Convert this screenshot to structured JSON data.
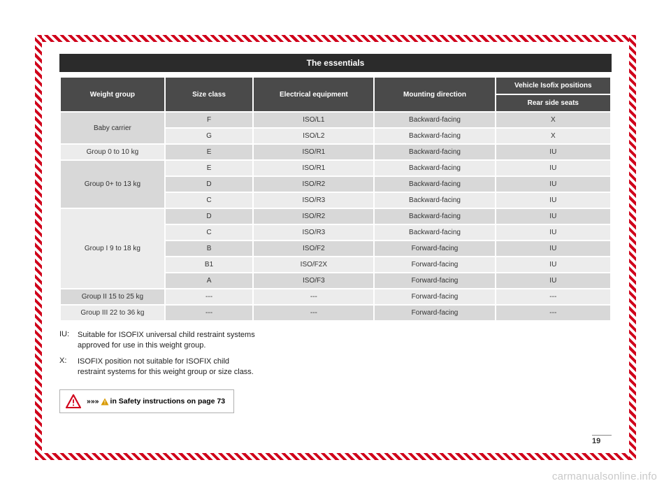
{
  "title": "The essentials",
  "columns": {
    "c1": "Weight group",
    "c2": "Size class",
    "c3": "Electrical equipment",
    "c4": "Mounting direction",
    "c5_top": "Vehicle Isofix positions",
    "c5_sub": "Rear side seats"
  },
  "rows": [
    {
      "group": "Baby carrier",
      "groupspan": 2,
      "shadeGroup": "a",
      "shade": "a",
      "size": "F",
      "equip": "ISO/L1",
      "dir": "Backward-facing",
      "pos": "X"
    },
    {
      "group": "",
      "groupspan": 0,
      "shadeGroup": "",
      "shade": "b",
      "size": "G",
      "equip": "ISO/L2",
      "dir": "Backward-facing",
      "pos": "X"
    },
    {
      "group": "Group 0 to 10 kg",
      "groupspan": 1,
      "shadeGroup": "b",
      "shade": "a",
      "size": "E",
      "equip": "ISO/R1",
      "dir": "Backward-facing",
      "pos": "IU"
    },
    {
      "group": "Group 0+ to 13 kg",
      "groupspan": 3,
      "shadeGroup": "a",
      "shade": "b",
      "size": "E",
      "equip": "ISO/R1",
      "dir": "Backward-facing",
      "pos": "IU"
    },
    {
      "group": "",
      "groupspan": 0,
      "shadeGroup": "",
      "shade": "a",
      "size": "D",
      "equip": "ISO/R2",
      "dir": "Backward-facing",
      "pos": "IU"
    },
    {
      "group": "",
      "groupspan": 0,
      "shadeGroup": "",
      "shade": "b",
      "size": "C",
      "equip": "ISO/R3",
      "dir": "Backward-facing",
      "pos": "IU"
    },
    {
      "group": "Group I 9 to 18 kg",
      "groupspan": 5,
      "shadeGroup": "b",
      "shade": "a",
      "size": "D",
      "equip": "ISO/R2",
      "dir": "Backward-facing",
      "pos": "IU"
    },
    {
      "group": "",
      "groupspan": 0,
      "shadeGroup": "",
      "shade": "b",
      "size": "C",
      "equip": "ISO/R3",
      "dir": "Backward-facing",
      "pos": "IU"
    },
    {
      "group": "",
      "groupspan": 0,
      "shadeGroup": "",
      "shade": "a",
      "size": "B",
      "equip": "ISO/F2",
      "dir": "Forward-facing",
      "pos": "IU"
    },
    {
      "group": "",
      "groupspan": 0,
      "shadeGroup": "",
      "shade": "b",
      "size": "B1",
      "equip": "ISO/F2X",
      "dir": "Forward-facing",
      "pos": "IU"
    },
    {
      "group": "",
      "groupspan": 0,
      "shadeGroup": "",
      "shade": "a",
      "size": "A",
      "equip": "ISO/F3",
      "dir": "Forward-facing",
      "pos": "IU"
    },
    {
      "group": "Group II 15 to 25 kg",
      "groupspan": 1,
      "shadeGroup": "a",
      "shade": "b",
      "size": "---",
      "equip": "---",
      "dir": "Forward-facing",
      "pos": "---"
    },
    {
      "group": "Group III 22 to 36 kg",
      "groupspan": 1,
      "shadeGroup": "b",
      "shade": "a",
      "size": "---",
      "equip": "---",
      "dir": "Forward-facing",
      "pos": "---"
    }
  ],
  "legend": {
    "iu_key": "IU:",
    "iu_text": "Suitable for ISOFIX universal child restraint systems approved for use in this weight group.",
    "x_key": "X:",
    "x_text": "ISOFIX position not suitable for ISOFIX child restraint systems for this weight group or size class."
  },
  "safety": {
    "chevron": "»»»",
    "text_before": " ",
    "text_after": " in Safety instructions on page 73"
  },
  "pagenum": "19",
  "watermark": "carmanualsonline.info",
  "colors": {
    "hatch": "#d0021b",
    "header_bg": "#4a4a4a",
    "title_bg": "#2b2b2b",
    "row_a": "#d8d8d8",
    "row_b": "#ececec",
    "warn_big": "#d0021b",
    "warn_sm": "#d99a00"
  }
}
